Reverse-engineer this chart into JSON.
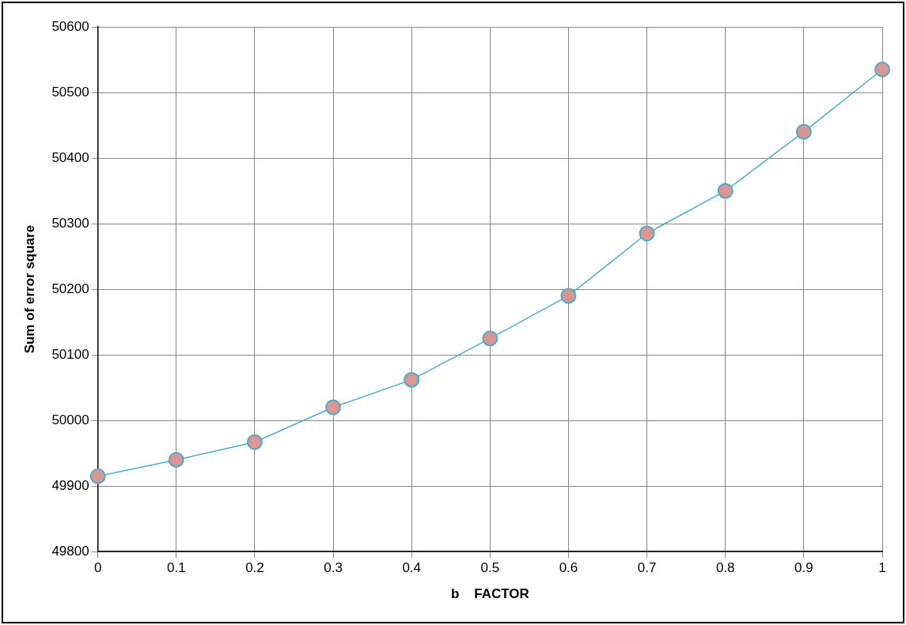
{
  "chart_data": {
    "type": "line",
    "xlabel": "b    FACTOR",
    "ylabel": "Sum of error square",
    "x": [
      0,
      0.1,
      0.2,
      0.3,
      0.4,
      0.5,
      0.6,
      0.7,
      0.8,
      0.9,
      1
    ],
    "series": [
      {
        "color": "#4bacc6",
        "values": [
          49915,
          49940,
          49967,
          50020,
          50062,
          50125,
          50190,
          50285,
          50350,
          50440,
          50535
        ]
      }
    ],
    "xlim": [
      0,
      1
    ],
    "xticks": [
      0,
      0.1,
      0.2,
      0.3,
      0.4,
      0.5,
      0.6,
      0.7,
      0.8,
      0.9,
      1
    ],
    "ylim": [
      49800,
      50600
    ],
    "yticks": [
      49800,
      49900,
      50000,
      50100,
      50200,
      50300,
      50400,
      50500,
      50600
    ],
    "grid": true,
    "marker": "circle",
    "line_style": "solid",
    "legend": false
  }
}
